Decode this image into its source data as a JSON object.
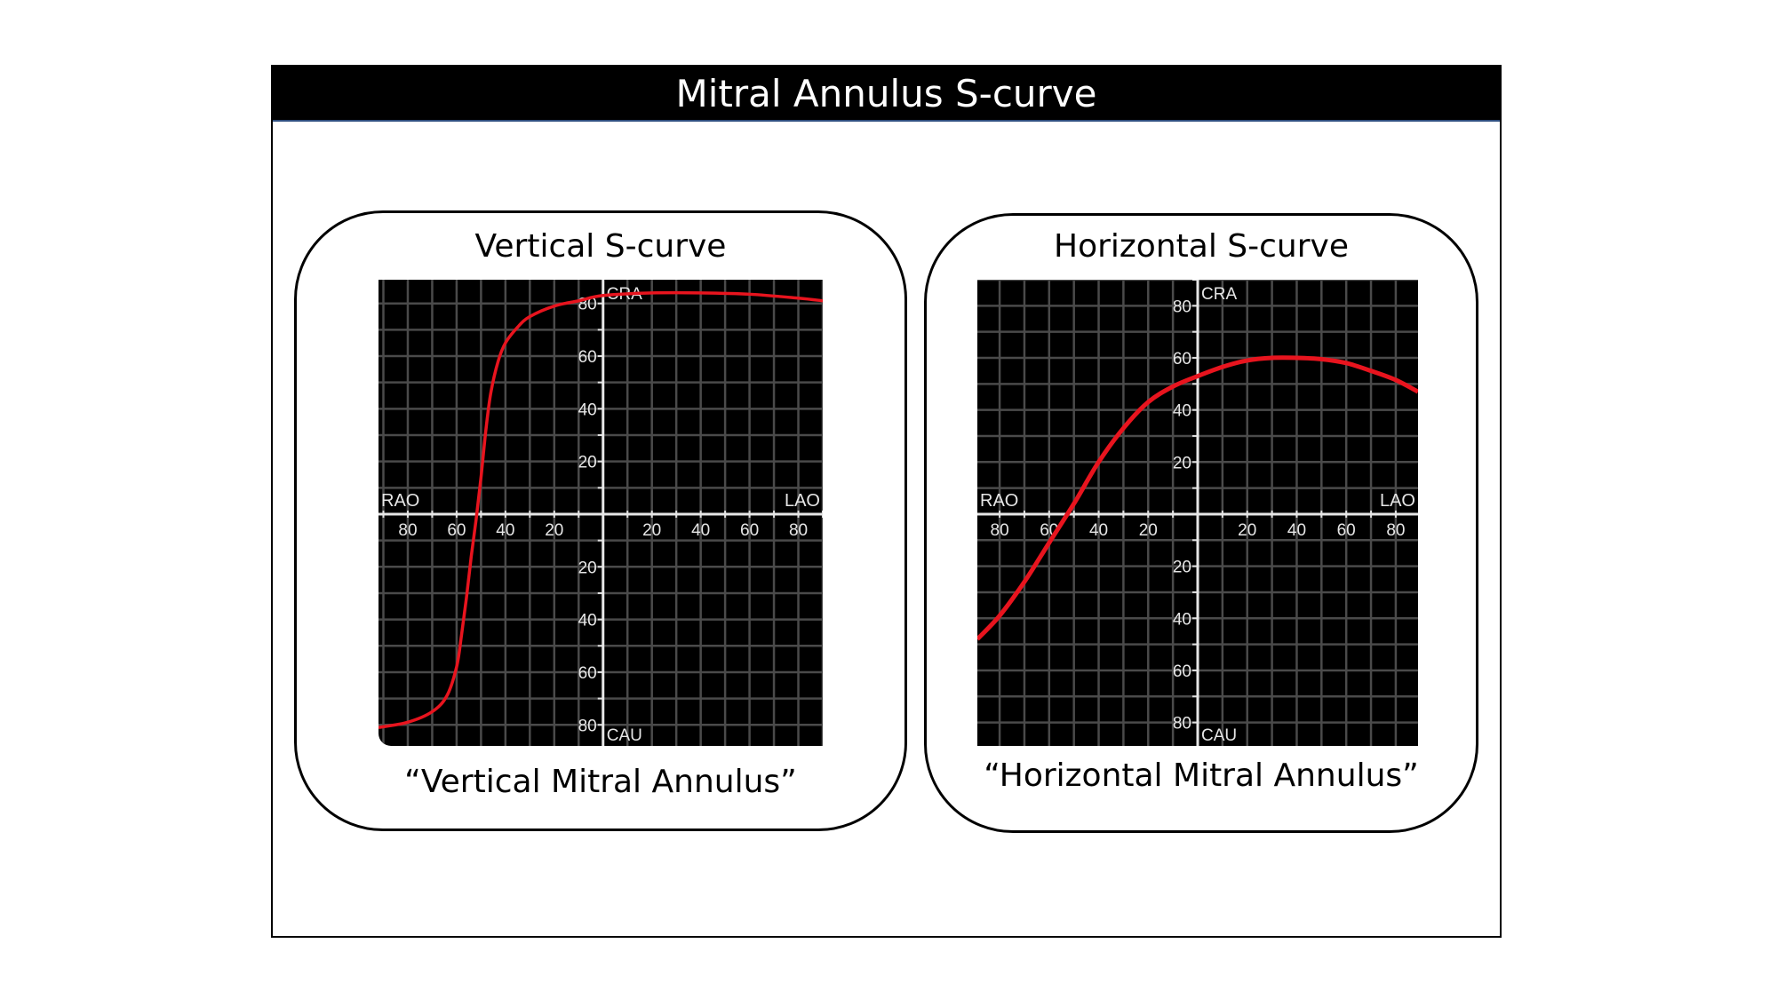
{
  "title": "Mitral Annulus S-curve",
  "panels": [
    {
      "title": "Vertical S-curve",
      "caption": "“Vertical Mitral Annulus”"
    },
    {
      "title": "Horizontal S-curve",
      "caption": "“Horizontal Mitral Annulus”"
    }
  ],
  "chart_data": [
    {
      "type": "line",
      "title": "Vertical S-curve",
      "axis_labels": {
        "left": "RAO",
        "right": "LAO",
        "top": "CRA",
        "bottom": "CAU"
      },
      "xlim": [
        -92,
        90
      ],
      "ylim": [
        -88,
        89
      ],
      "x_ticks": [
        -80,
        -60,
        -40,
        -20,
        20,
        40,
        60,
        80
      ],
      "x_tick_labels": [
        "80",
        "60",
        "40",
        "20",
        "20",
        "40",
        "60",
        "80"
      ],
      "y_ticks": [
        80,
        60,
        40,
        20,
        -20,
        -40,
        -60,
        -80
      ],
      "y_tick_labels": [
        "80",
        "60",
        "40",
        "20",
        "20",
        "40",
        "60",
        "80"
      ],
      "grid": true,
      "line_color": "#e8141e",
      "series": [
        {
          "name": "S-curve",
          "x": [
            -92,
            -80,
            -70,
            -64,
            -60,
            -58,
            -56,
            -54,
            -52,
            -50,
            -48,
            -46,
            -43,
            -40,
            -35,
            -30,
            -20,
            -10,
            0,
            20,
            40,
            60,
            80,
            90
          ],
          "y": [
            -81,
            -79,
            -75,
            -69,
            -58,
            -46,
            -32,
            -16,
            -2,
            14,
            32,
            46,
            58,
            65,
            71,
            75,
            79,
            81,
            83,
            84,
            84,
            83.5,
            82,
            81
          ]
        }
      ]
    },
    {
      "type": "line",
      "title": "Horizontal S-curve",
      "axis_labels": {
        "left": "RAO",
        "right": "LAO",
        "top": "CRA",
        "bottom": "CAU"
      },
      "xlim": [
        -89,
        89
      ],
      "ylim": [
        -89,
        90
      ],
      "x_ticks": [
        -80,
        -60,
        -40,
        -20,
        20,
        40,
        60,
        80
      ],
      "x_tick_labels": [
        "80",
        "60",
        "40",
        "20",
        "20",
        "40",
        "60",
        "80"
      ],
      "y_ticks": [
        80,
        60,
        40,
        20,
        -20,
        -40,
        -60,
        -80
      ],
      "y_tick_labels": [
        "80",
        "60",
        "40",
        "20",
        "20",
        "40",
        "60",
        "80"
      ],
      "grid": true,
      "line_color": "#e8141e",
      "series": [
        {
          "name": "S-curve",
          "x": [
            -89,
            -80,
            -70,
            -60,
            -50,
            -40,
            -30,
            -20,
            -10,
            0,
            10,
            20,
            30,
            40,
            50,
            60,
            70,
            80,
            89
          ],
          "y": [
            -48,
            -39,
            -26,
            -11,
            4,
            20,
            33,
            43,
            49,
            53,
            56.5,
            59,
            60,
            60,
            59.5,
            58,
            55,
            51.5,
            47
          ]
        }
      ]
    }
  ]
}
